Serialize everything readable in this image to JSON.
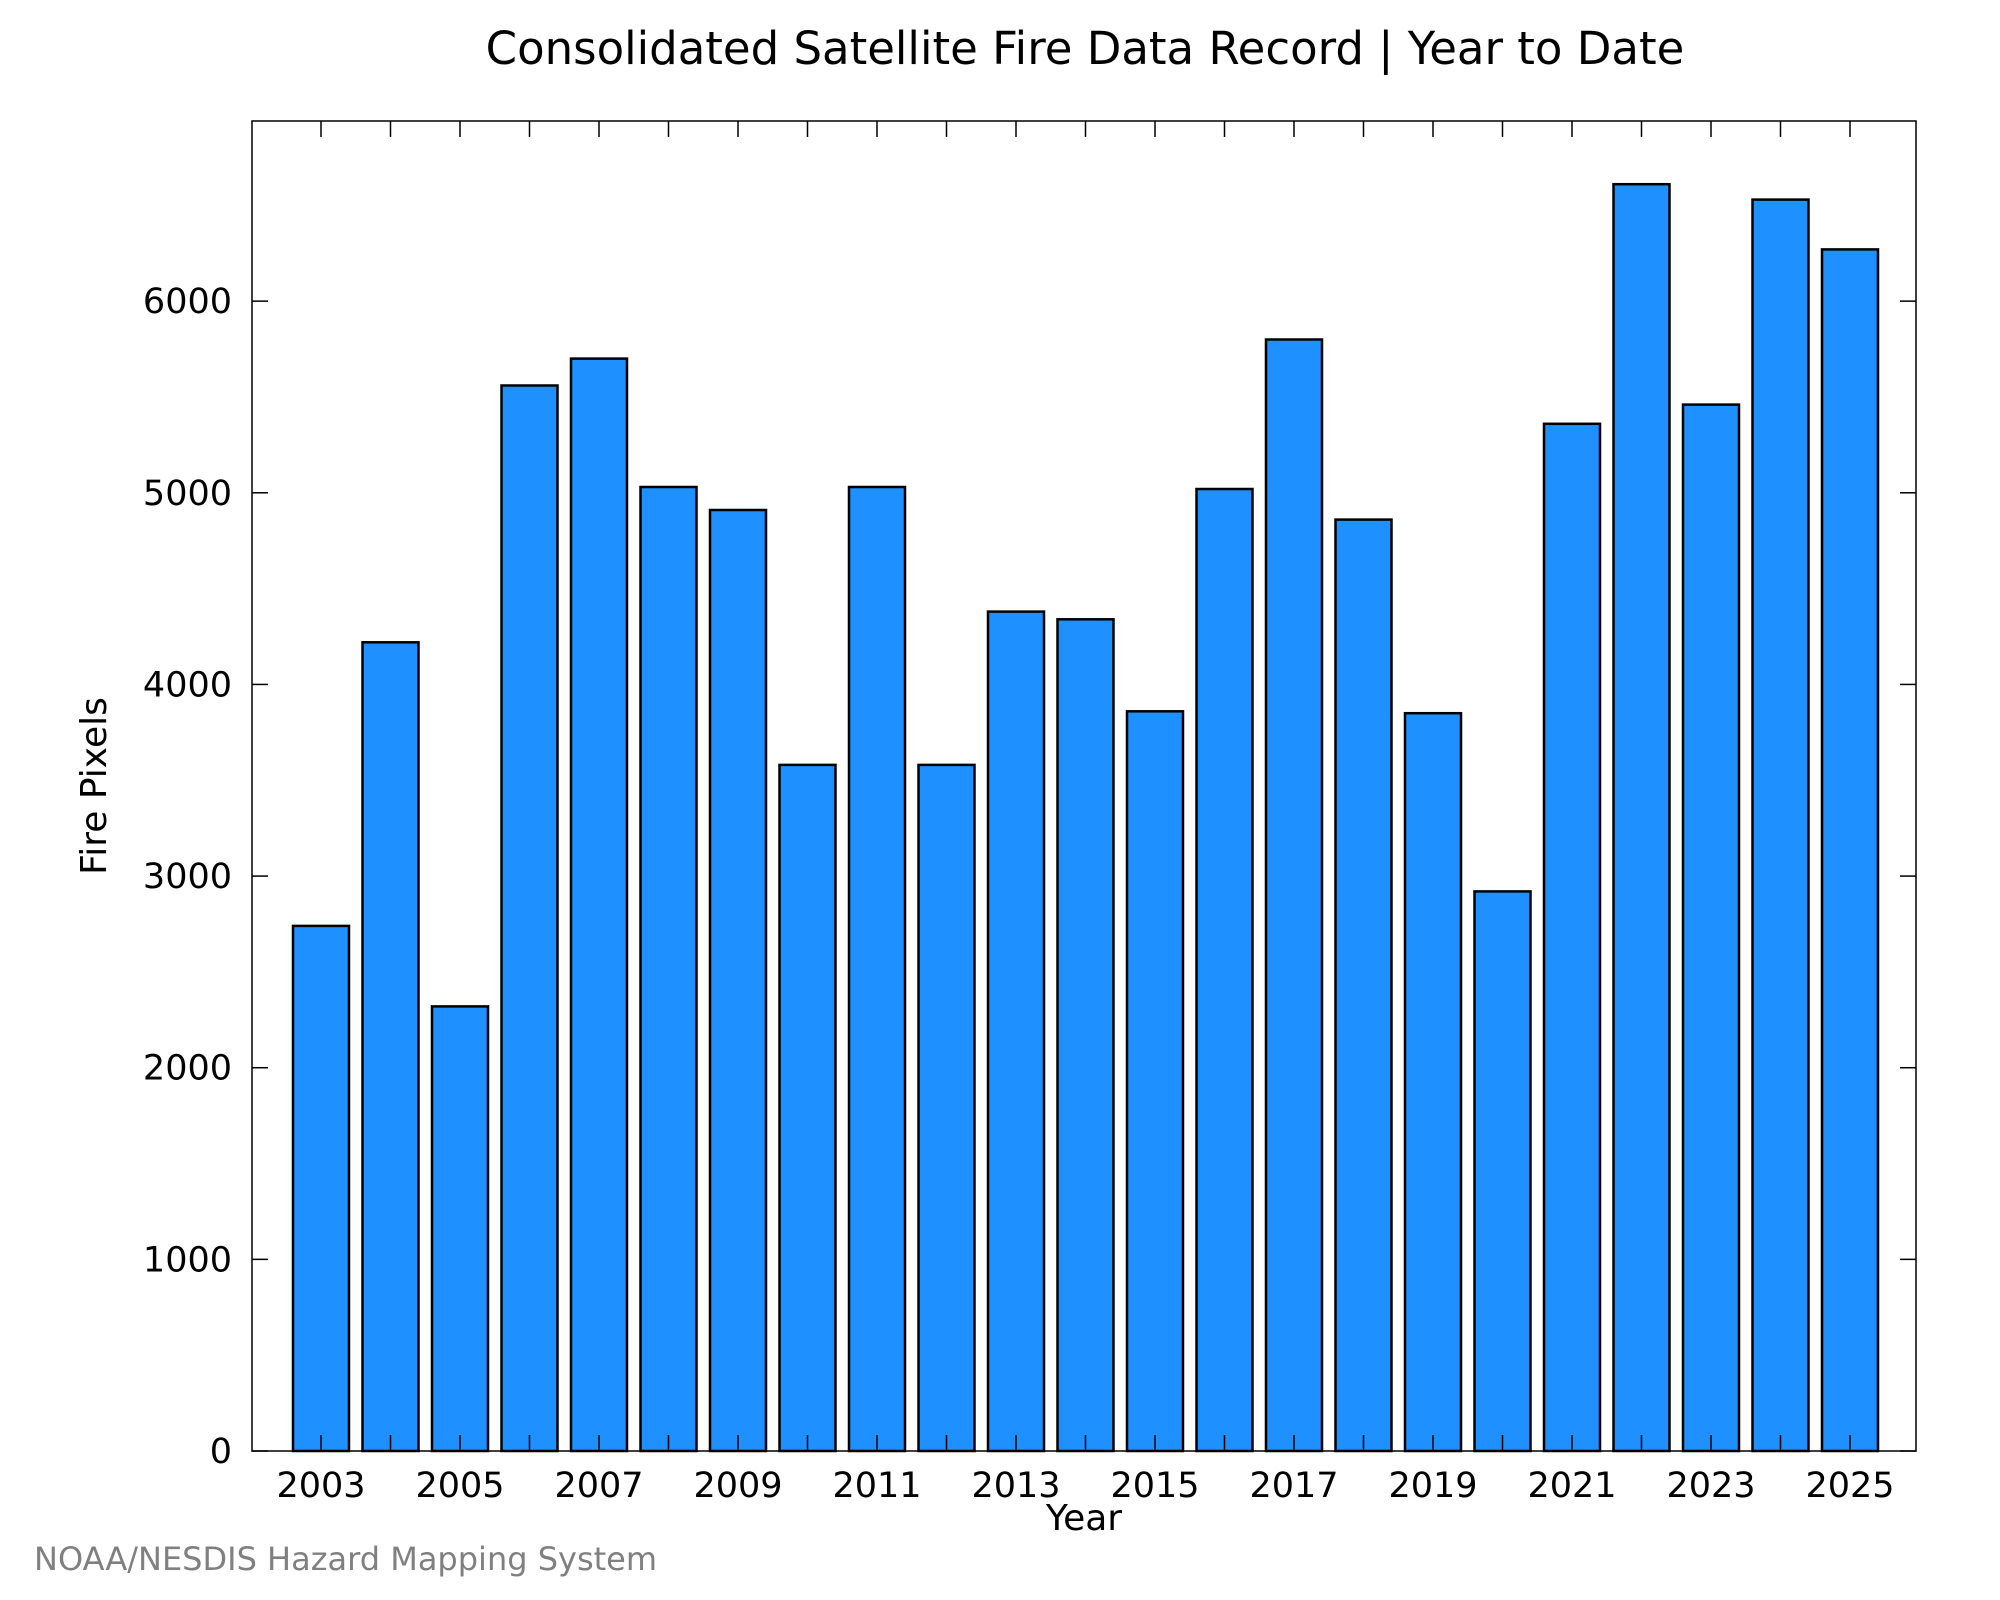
{
  "footer": {
    "credit": "NOAA/NESDIS Hazard Mapping System"
  },
  "chart_data": {
    "type": "bar",
    "title": "Consolidated Satellite Fire Data Record | Year to Date",
    "xlabel": "Year",
    "ylabel": "Fire Pixels",
    "categories": [
      "2003",
      "2004",
      "2005",
      "2006",
      "2007",
      "2008",
      "2009",
      "2010",
      "2011",
      "2012",
      "2013",
      "2014",
      "2015",
      "2016",
      "2017",
      "2018",
      "2019",
      "2020",
      "2021",
      "2022",
      "2023",
      "2024",
      "2025"
    ],
    "values": [
      2740,
      4220,
      2320,
      5560,
      5700,
      5030,
      4910,
      3580,
      5030,
      3580,
      4380,
      4340,
      3860,
      5020,
      5800,
      4860,
      3850,
      2920,
      5360,
      6610,
      5460,
      6530,
      6270
    ],
    "x_tick_labels": [
      "2003",
      "2005",
      "2007",
      "2009",
      "2011",
      "2013",
      "2015",
      "2017",
      "2019",
      "2021",
      "2023",
      "2025"
    ],
    "y_tick_labels": [
      "0",
      "1000",
      "2000",
      "3000",
      "4000",
      "5000",
      "6000"
    ],
    "ylim": [
      0,
      6940
    ],
    "bar_color": "#1e90ff",
    "bar_edge_color": "#000000",
    "grid": false
  }
}
